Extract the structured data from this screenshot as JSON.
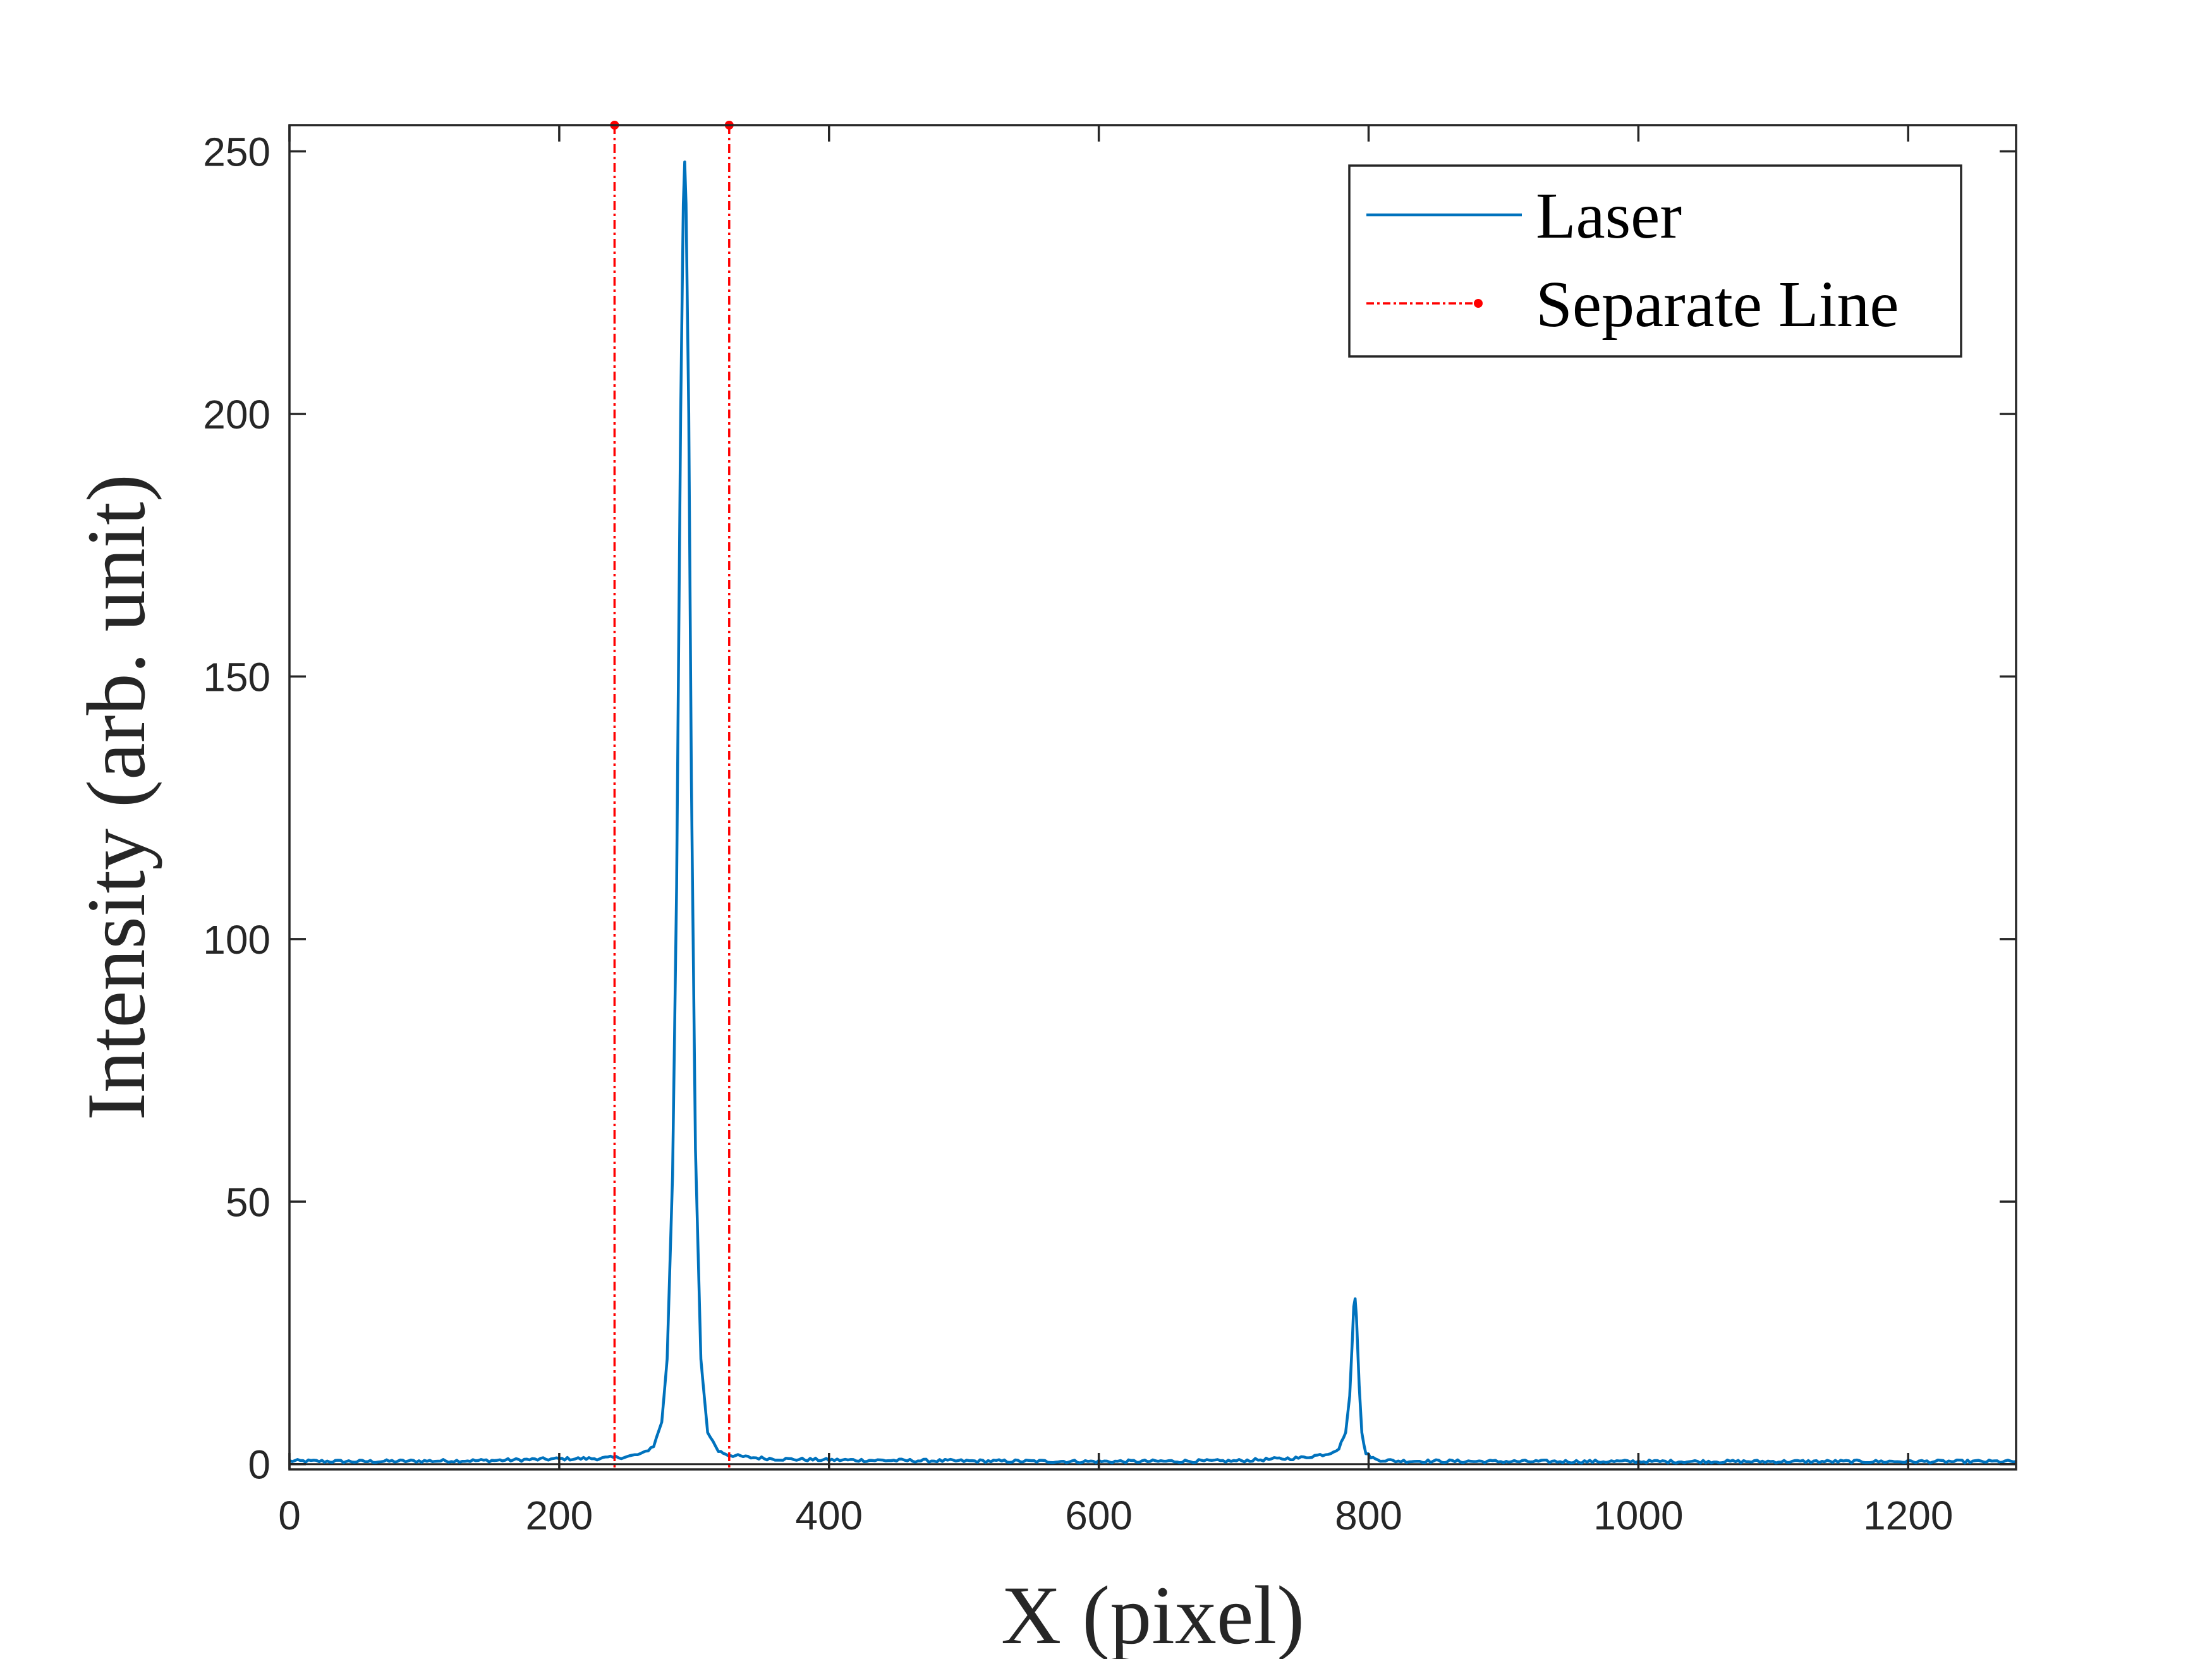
{
  "chart_data": {
    "type": "line",
    "xlabel": "X (pixel)",
    "ylabel": "Intensity (arb. unit)",
    "xlim": [
      0,
      1280
    ],
    "ylim": [
      -1,
      255
    ],
    "xticks": [
      0,
      200,
      400,
      600,
      800,
      1000,
      1200
    ],
    "xtick_labels": [
      "0",
      "200",
      "400",
      "600",
      "800",
      "1000",
      "1200"
    ],
    "yticks": [
      0,
      50,
      100,
      150,
      200,
      250
    ],
    "ytick_labels": [
      "0",
      "50",
      "100",
      "150",
      "200",
      "250"
    ],
    "grid": false,
    "legend_position": "top-right",
    "series": [
      {
        "name": "Laser",
        "color": "#0072BD",
        "style": "solid",
        "x": [
          0,
          50,
          100,
          150,
          200,
          230,
          250,
          262,
          270,
          276,
          280,
          284,
          287,
          290,
          292,
          293,
          294,
          296,
          298,
          301,
          305,
          310,
          318,
          325,
          340,
          360,
          400,
          500,
          600,
          700,
          750,
          770,
          778,
          783,
          786,
          788,
          789,
          790,
          791,
          793,
          795,
          798,
          805,
          820,
          900,
          1000,
          1100,
          1200,
          1280
        ],
        "y": [
          0.6,
          0.5,
          0.6,
          0.7,
          1.0,
          1.1,
          1.4,
          2.0,
          3.5,
          8.0,
          20.0,
          55.0,
          110.0,
          200.0,
          240.0,
          248.0,
          240.0,
          200.0,
          130.0,
          60.0,
          20.0,
          6.0,
          2.5,
          1.8,
          1.3,
          1.0,
          0.8,
          0.6,
          0.5,
          0.6,
          1.2,
          2.0,
          3.0,
          6.0,
          13.0,
          24.0,
          30.0,
          31.5,
          28.0,
          15.0,
          6.0,
          2.0,
          0.9,
          0.6,
          0.5,
          0.5,
          0.5,
          0.5,
          0.5
        ]
      },
      {
        "name": "Separate Line",
        "color": "#FF0000",
        "style": "dash-dot",
        "marker": "dot",
        "x_positions": [
          241,
          326
        ]
      }
    ],
    "baseline": 0
  },
  "legend": {
    "items": [
      "Laser",
      "Separate Line"
    ]
  },
  "colors": {
    "axis": "#262626",
    "laser": "#0072BD",
    "separate": "#FF0000"
  }
}
